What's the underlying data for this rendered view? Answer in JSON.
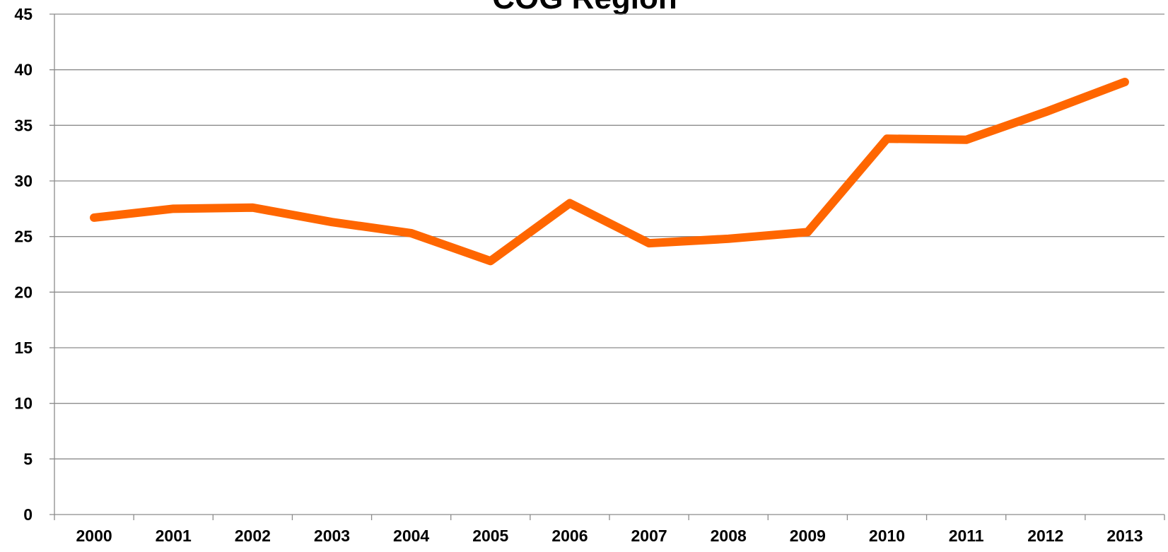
{
  "chart_data": {
    "type": "line",
    "title": "COG Region",
    "categories": [
      "2000",
      "2001",
      "2002",
      "2003",
      "2004",
      "2005",
      "2006",
      "2007",
      "2008",
      "2009",
      "2010",
      "2011",
      "2012",
      "2013"
    ],
    "values": [
      26.7,
      27.5,
      27.6,
      26.3,
      25.3,
      22.8,
      28.0,
      24.4,
      24.8,
      25.4,
      33.8,
      33.7,
      36.2,
      38.9
    ],
    "color": "#ff6600",
    "ylim": [
      0,
      45
    ],
    "yticks": [
      0,
      5,
      10,
      15,
      20,
      25,
      30,
      35,
      40,
      45
    ],
    "grid": true
  }
}
